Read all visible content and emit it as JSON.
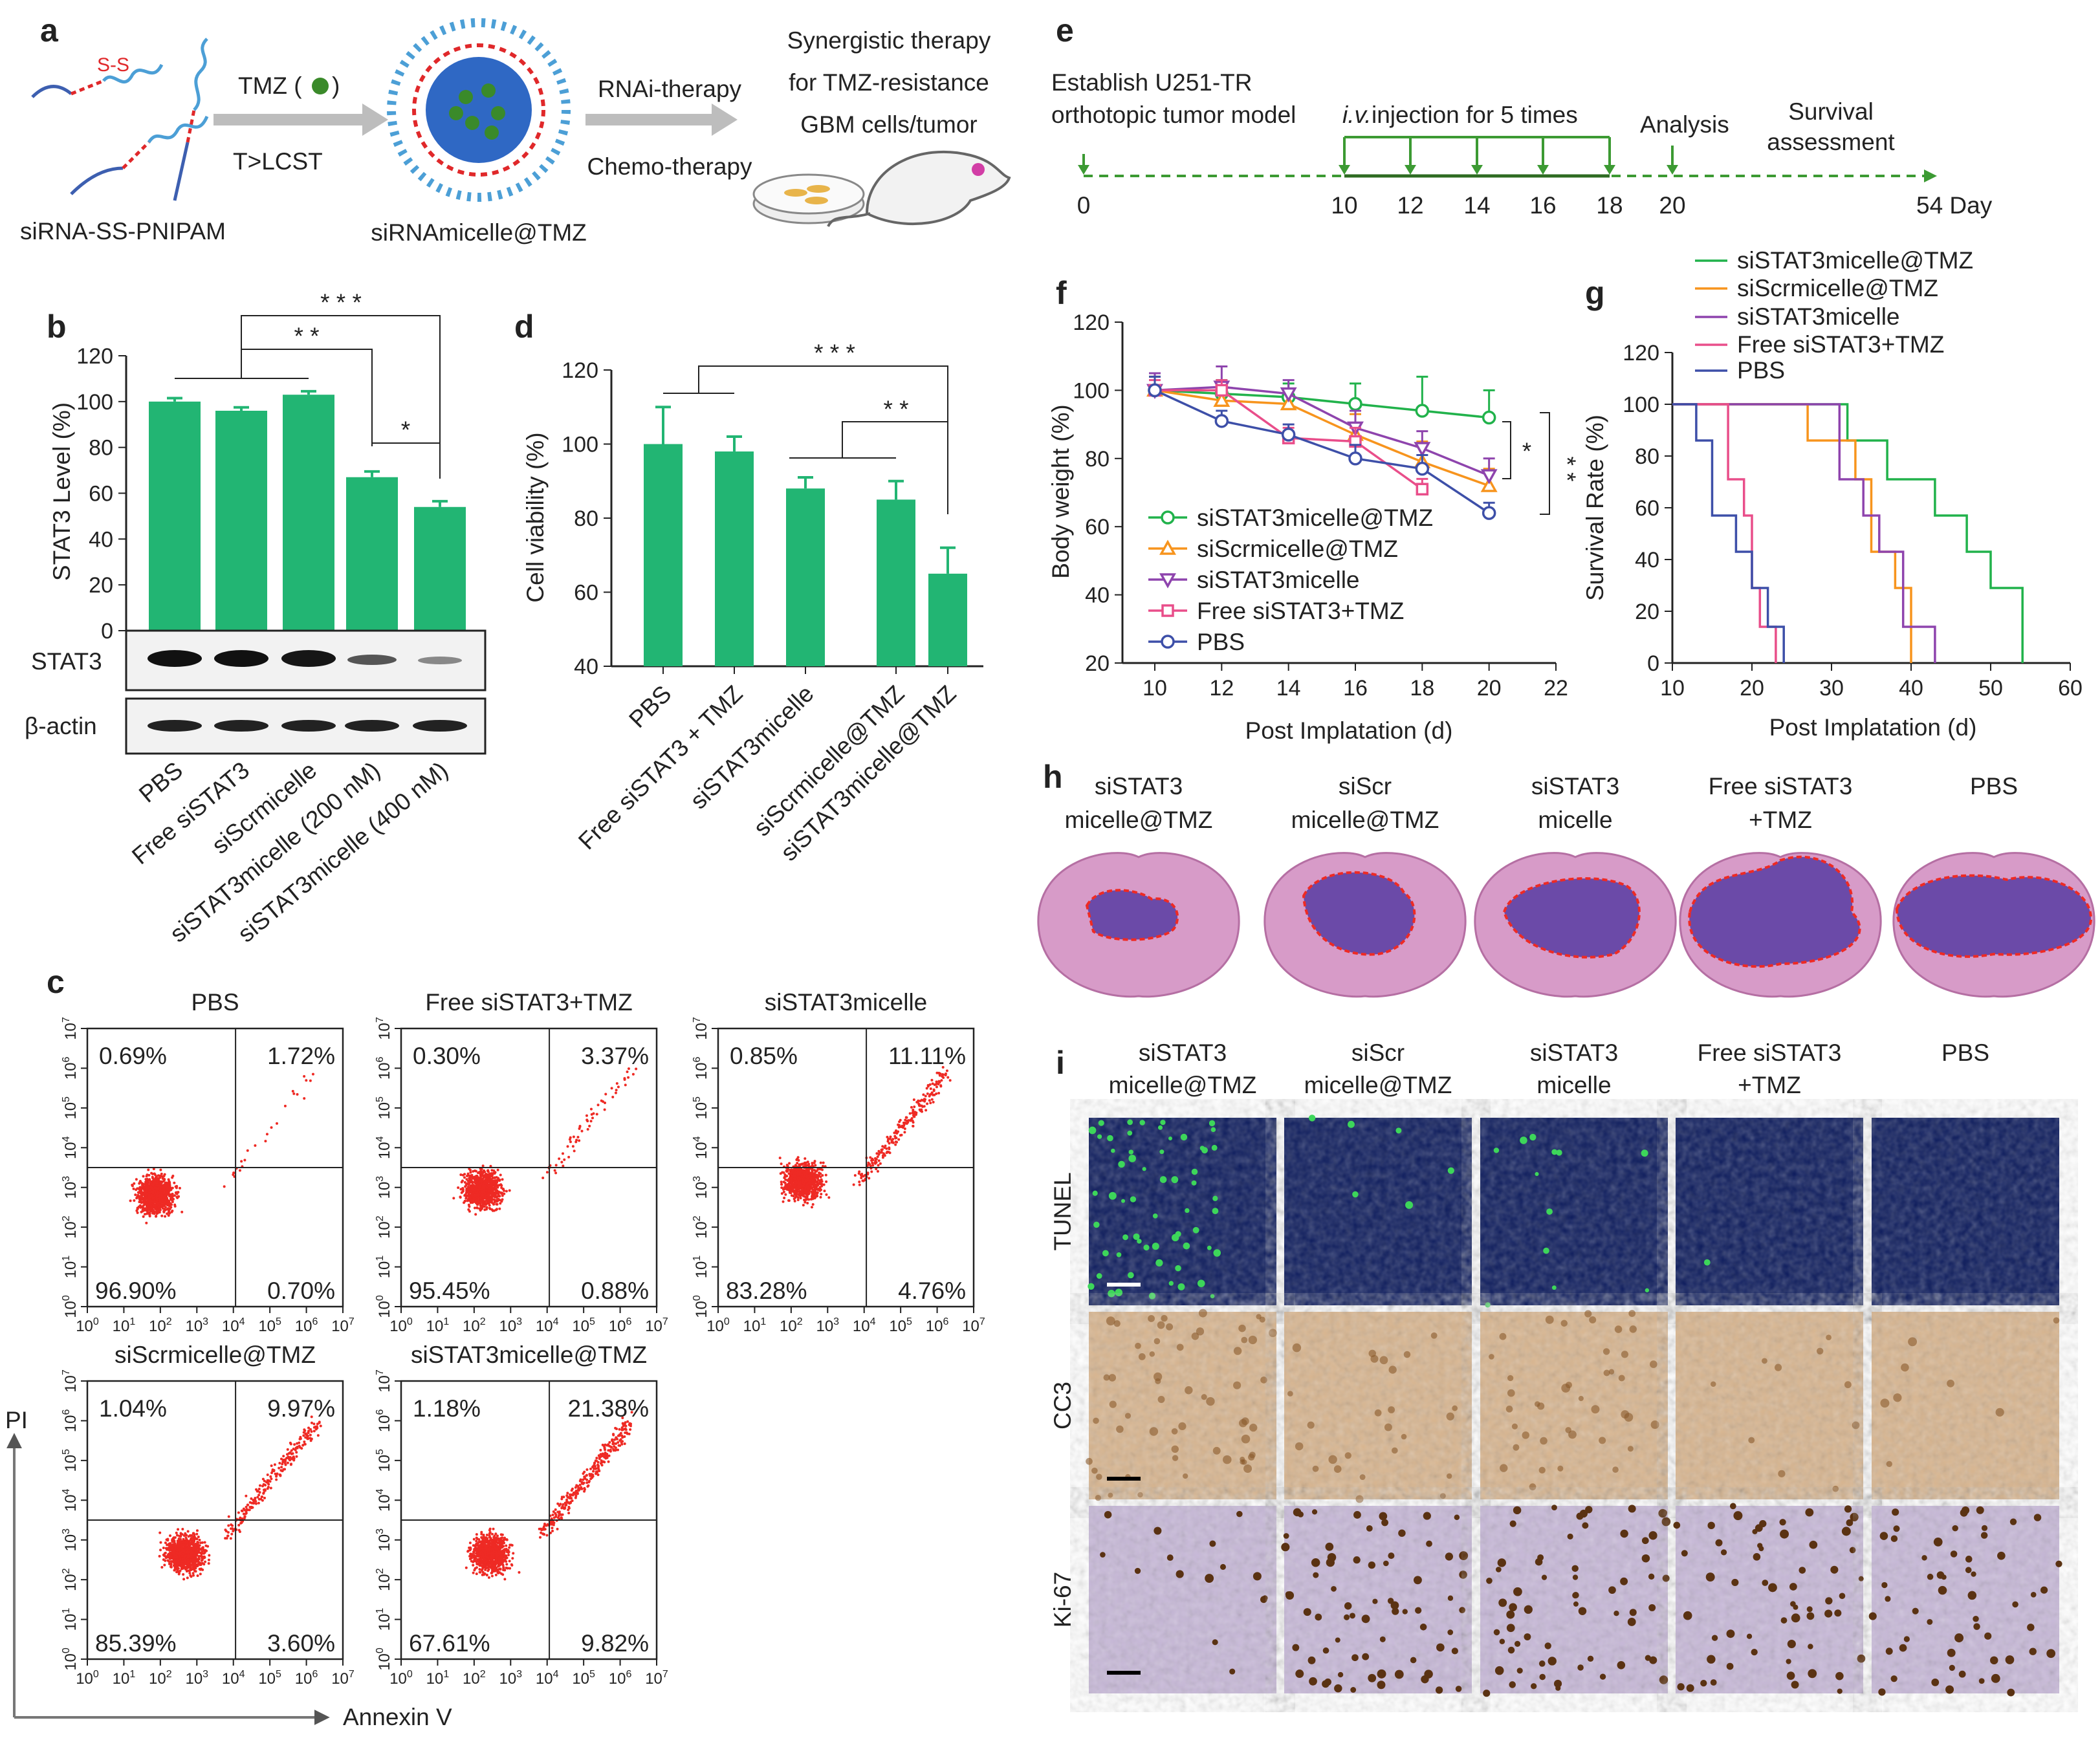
{
  "colors": {
    "bar": "#22b573",
    "red": "#ee2a24",
    "green": "#21b24b",
    "orange": "#f7941d",
    "purple": "#8e44ad",
    "pink": "#e94e8a",
    "blue": "#3d4fa8",
    "dash_green": "#3c9a33",
    "gray_arrow": "#bdbdbd",
    "tumor": "#6b4aa8",
    "tissue": "#d79bc8",
    "tunel_bg": "#0b1a5c",
    "cc3_bg": "#d8b58f",
    "ki67_bg": "#c7b8d8"
  },
  "panel_a": {
    "label": "a",
    "polymer": "siRNA-SS-PNIPAM",
    "tmz": "TMZ (",
    "tmz_close": ")",
    "cond": "T>LCST",
    "micelle": "siRNAmicelle@TMZ",
    "rnai": "RNAi-therapy",
    "chemo": "Chemo-therapy",
    "syn1": "Synergistic therapy",
    "syn2": "for TMZ-resistance",
    "syn3": "GBM cells/tumor",
    "ss": "S-S"
  },
  "panel_b": {
    "label": "b",
    "ylabel": "STAT3 Level (%)",
    "yticks": [
      "120",
      "100",
      "80",
      "60",
      "40",
      "20",
      "0"
    ],
    "blot_rows": [
      "STAT3",
      "β-actin"
    ],
    "categories": [
      "PBS",
      "Free siSTAT3",
      "siScrmicelle",
      "siSTAT3micelle (200 nM)",
      "siSTAT3micelle (400 nM)"
    ],
    "sig": [
      "* * *",
      "* *",
      "*"
    ]
  },
  "panel_c": {
    "label": "c",
    "plots": [
      {
        "title": "PBS",
        "ul": "0.69%",
        "ur": "1.72%",
        "ll": "96.90%",
        "lr": "0.70%"
      },
      {
        "title": "Free siSTAT3+TMZ",
        "ul": "0.30%",
        "ur": "3.37%",
        "ll": "95.45%",
        "lr": "0.88%"
      },
      {
        "title": "siSTAT3micelle",
        "ul": "0.85%",
        "ur": "11.11%",
        "ll": "83.28%",
        "lr": "4.76%"
      },
      {
        "title": "siScrmicelle@TMZ",
        "ul": "1.04%",
        "ur": "9.97%",
        "ll": "85.39%",
        "lr": "3.60%"
      },
      {
        "title": "siSTAT3micelle@TMZ",
        "ul": "1.18%",
        "ur": "21.38%",
        "ll": "67.61%",
        "lr": "9.82%"
      }
    ],
    "xlabel": "Annexin V",
    "ylabel": "PI",
    "tick_base": "10",
    "tick_exps": [
      "0",
      "1",
      "2",
      "3",
      "4",
      "5",
      "6",
      "7"
    ]
  },
  "panel_d": {
    "label": "d",
    "ylabel": "Cell viability (%)",
    "yticks": [
      "120",
      "100",
      "80",
      "60",
      "40"
    ],
    "categories": [
      "PBS",
      "Free siSTAT3 + TMZ",
      "siSTAT3micelle",
      "siScrmicelle@TMZ",
      "siSTAT3micelle@TMZ"
    ],
    "sig": [
      "* * *",
      "* *"
    ]
  },
  "panel_e": {
    "label": "e",
    "est1": "Establish U251-TR",
    "est2": "orthotopic tumor model",
    "iv": "i.v.",
    "inj": " injection for 5 times",
    "analysis": "Analysis",
    "surv1": "Survival",
    "surv2": "assessment",
    "days": [
      "0",
      "10",
      "12",
      "14",
      "16",
      "18",
      "20"
    ],
    "end": "54 Day"
  },
  "panel_f": {
    "label": "f",
    "ylabel": "Body weight (%)",
    "xlabel": "Post Implatation (d)",
    "yticks": [
      "120",
      "100",
      "80",
      "60",
      "40",
      "20"
    ],
    "xticks": [
      "10",
      "12",
      "14",
      "16",
      "18",
      "20",
      "22"
    ],
    "legend": [
      "siSTAT3micelle@TMZ",
      "siScrmicelle@TMZ",
      "siSTAT3micelle",
      "Free siSTAT3+TMZ",
      "PBS"
    ],
    "sig": [
      "*",
      "* *"
    ]
  },
  "panel_g": {
    "label": "g",
    "ylabel": "Survival Rate (%)",
    "xlabel": "Post Implatation (d)",
    "yticks": [
      "120",
      "100",
      "80",
      "60",
      "40",
      "20",
      "0"
    ],
    "xticks": [
      "10",
      "20",
      "30",
      "40",
      "50",
      "60"
    ],
    "legend": [
      "siSTAT3micelle@TMZ",
      "siScrmicelle@TMZ",
      "siSTAT3micelle",
      "Free siSTAT3+TMZ",
      "PBS"
    ]
  },
  "panel_h": {
    "label": "h",
    "groups": [
      [
        "siSTAT3",
        "micelle@TMZ"
      ],
      [
        "siScr",
        "micelle@TMZ"
      ],
      [
        "siSTAT3",
        "micelle"
      ],
      [
        "Free siSTAT3",
        "+TMZ"
      ],
      [
        "PBS",
        ""
      ]
    ]
  },
  "panel_i": {
    "label": "i",
    "groups": [
      [
        "siSTAT3",
        "micelle@TMZ"
      ],
      [
        "siScr",
        "micelle@TMZ"
      ],
      [
        "siSTAT3",
        "micelle"
      ],
      [
        "Free siSTAT3",
        "+TMZ"
      ],
      [
        "PBS",
        ""
      ]
    ],
    "rows": [
      "TUNEL",
      "CC3",
      "Ki-67"
    ]
  },
  "chart_data": [
    {
      "type": "bar",
      "title": "b",
      "categories": [
        "PBS",
        "Free siSTAT3",
        "siScrmicelle",
        "siSTAT3micelle (200 nM)",
        "siSTAT3micelle (400 nM)"
      ],
      "values": [
        100,
        96,
        103,
        67,
        54
      ],
      "errors": [
        1.5,
        1.5,
        1.5,
        2.5,
        2.5
      ],
      "ylabel": "STAT3 Level (%)",
      "ylim": [
        0,
        120
      ]
    },
    {
      "type": "bar",
      "title": "d",
      "categories": [
        "PBS",
        "Free siSTAT3 + TMZ",
        "siSTAT3micelle",
        "siScrmicelle@TMZ",
        "siSTAT3micelle@TMZ"
      ],
      "values": [
        100,
        98,
        88,
        85,
        65
      ],
      "errors": [
        10,
        4,
        3,
        5,
        7
      ],
      "ylabel": "Cell viability (%)",
      "ylim": [
        40,
        120
      ]
    },
    {
      "type": "line",
      "title": "f",
      "x": [
        10,
        12,
        14,
        16,
        18,
        20
      ],
      "xlabel": "Post Implatation (d)",
      "ylabel": "Body weight (%)",
      "ylim": [
        20,
        120
      ],
      "xlim": [
        10,
        22
      ],
      "series": [
        {
          "name": "siSTAT3micelle@TMZ",
          "values": [
            100,
            99,
            98,
            96,
            94,
            92
          ],
          "errors": [
            4,
            4,
            4,
            6,
            10,
            8
          ]
        },
        {
          "name": "siScrmicelle@TMZ",
          "values": [
            100,
            97,
            96,
            87,
            79,
            72
          ],
          "errors": [
            4,
            5,
            4,
            6,
            6,
            5
          ]
        },
        {
          "name": "siSTAT3micelle",
          "values": [
            100,
            101,
            99,
            89,
            83,
            75
          ],
          "errors": [
            5,
            6,
            4,
            5,
            5,
            5
          ]
        },
        {
          "name": "Free siSTAT3+TMZ",
          "values": [
            100,
            100,
            86,
            85,
            71,
            null
          ],
          "errors": [
            3,
            3,
            3,
            4,
            3,
            0
          ]
        },
        {
          "name": "PBS",
          "values": [
            100,
            91,
            87,
            80,
            77,
            64
          ],
          "errors": [
            4,
            3,
            3,
            4,
            4,
            3
          ]
        }
      ]
    },
    {
      "type": "line",
      "title": "g",
      "xlabel": "Post Implatation (d)",
      "ylabel": "Survival Rate (%)",
      "ylim": [
        0,
        120
      ],
      "xlim": [
        10,
        60
      ],
      "series": [
        {
          "name": "siSTAT3micelle@TMZ",
          "x": [
            10,
            29,
            32,
            37,
            43,
            47,
            50,
            54
          ],
          "values": [
            100,
            100,
            86,
            71,
            57,
            43,
            29,
            0
          ]
        },
        {
          "name": "siScrmicelle@TMZ",
          "x": [
            10,
            25,
            27,
            33,
            35,
            38,
            40
          ],
          "values": [
            100,
            100,
            86,
            71,
            43,
            29,
            0
          ]
        },
        {
          "name": "siSTAT3micelle",
          "x": [
            10,
            27,
            31,
            34,
            36,
            39,
            43
          ],
          "values": [
            100,
            100,
            71,
            57,
            43,
            14,
            0
          ]
        },
        {
          "name": "Free siSTAT3+TMZ",
          "x": [
            10,
            15,
            17,
            19,
            20,
            21,
            23
          ],
          "values": [
            100,
            100,
            71,
            57,
            29,
            14,
            0
          ]
        },
        {
          "name": "PBS",
          "x": [
            10,
            13,
            15,
            18,
            20,
            22,
            24
          ],
          "values": [
            100,
            86,
            57,
            43,
            29,
            14,
            0
          ]
        }
      ]
    }
  ]
}
